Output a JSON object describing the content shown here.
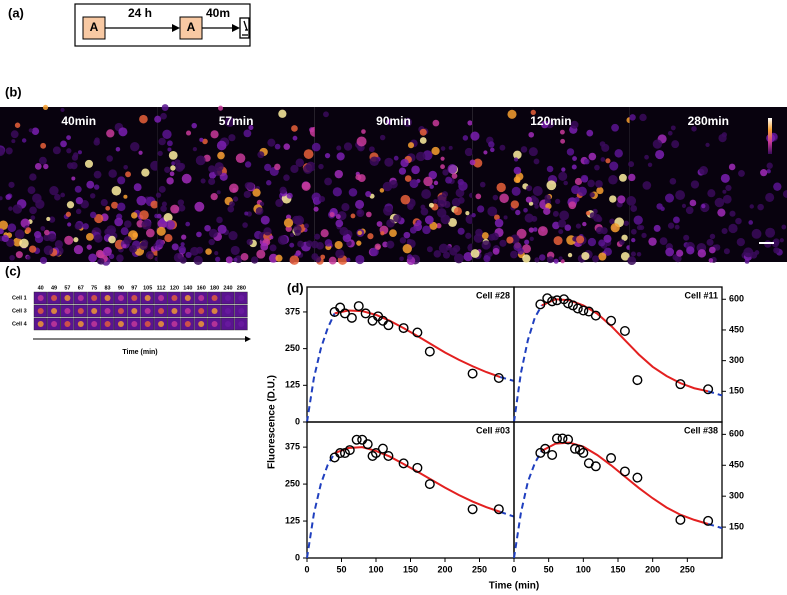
{
  "figure": {
    "a": {
      "label": "(a)",
      "box1": "A",
      "box2": "A",
      "step1": "24 h",
      "step2": "40m"
    },
    "b": {
      "label": "(b)",
      "frames": [
        "40min",
        "57min",
        "90min",
        "120min",
        "280min"
      ]
    },
    "c": {
      "label": "(c)",
      "times": [
        "40",
        "49",
        "57",
        "67",
        "75",
        "83",
        "90",
        "97",
        "105",
        "112",
        "120",
        "140",
        "160",
        "180",
        "240",
        "280"
      ],
      "rows": [
        "Cell 1",
        "Cell 3",
        "Cell 4"
      ],
      "axis": "Time (min)"
    },
    "d": {
      "label": "(d)",
      "ylabel": "Fluorescence (D.U.)",
      "xlabel": "Time (min)"
    }
  },
  "chart_data": [
    {
      "type": "scatter",
      "title": "Cell #28",
      "xlim": [
        0,
        300
      ],
      "ylim": [
        0,
        460
      ],
      "yticks": [
        0,
        125,
        250,
        375
      ],
      "x": [
        40,
        48,
        55,
        65,
        75,
        85,
        95,
        103,
        110,
        118,
        140,
        160,
        178,
        240,
        278
      ],
      "values": [
        375,
        390,
        370,
        355,
        395,
        370,
        345,
        360,
        345,
        330,
        320,
        305,
        240,
        165,
        150
      ],
      "series": [
        {
          "color": "#e32020",
          "x": [
            40,
            60,
            80,
            100,
            120,
            140,
            160,
            180,
            200,
            220,
            240,
            260,
            280
          ],
          "values": [
            370,
            380,
            378,
            365,
            345,
            320,
            293,
            265,
            237,
            212,
            190,
            170,
            153
          ]
        },
        {
          "color": "#1f3fbf",
          "dash": true,
          "x": [
            0,
            10,
            20,
            30,
            40
          ],
          "values": [
            0,
            150,
            250,
            320,
            370
          ]
        },
        {
          "color": "#1f3fbf",
          "dash": true,
          "x": [
            280,
            300
          ],
          "values": [
            153,
            140
          ]
        }
      ]
    },
    {
      "type": "scatter",
      "title": "Cell #11",
      "xlim": [
        0,
        300
      ],
      "ylim": [
        0,
        660
      ],
      "yticks": [
        150,
        300,
        450,
        600
      ],
      "x": [
        38,
        48,
        55,
        62,
        72,
        78,
        85,
        92,
        100,
        108,
        118,
        140,
        160,
        178,
        240,
        280
      ],
      "values": [
        575,
        605,
        590,
        595,
        600,
        580,
        570,
        555,
        545,
        540,
        520,
        495,
        445,
        205,
        185,
        160
      ],
      "series": [
        {
          "color": "#e32020",
          "x": [
            40,
            60,
            80,
            100,
            120,
            140,
            160,
            180,
            200,
            220,
            240,
            260,
            280
          ],
          "values": [
            570,
            600,
            595,
            570,
            530,
            470,
            400,
            330,
            270,
            225,
            190,
            165,
            150
          ]
        },
        {
          "color": "#1f3fbf",
          "dash": true,
          "x": [
            0,
            10,
            20,
            30,
            40
          ],
          "values": [
            0,
            240,
            400,
            510,
            570
          ]
        },
        {
          "color": "#1f3fbf",
          "dash": true,
          "x": [
            280,
            300
          ],
          "values": [
            150,
            130
          ]
        }
      ]
    },
    {
      "type": "scatter",
      "title": "Cell #03",
      "xlim": [
        0,
        300
      ],
      "ylim": [
        0,
        460
      ],
      "yticks": [
        0,
        125,
        250,
        375
      ],
      "x": [
        40,
        48,
        55,
        62,
        72,
        80,
        88,
        95,
        100,
        110,
        118,
        140,
        160,
        178,
        240,
        278
      ],
      "values": [
        340,
        355,
        355,
        365,
        400,
        400,
        385,
        345,
        355,
        370,
        345,
        320,
        305,
        250,
        165,
        165
      ],
      "series": [
        {
          "color": "#e32020",
          "x": [
            40,
            60,
            80,
            100,
            120,
            140,
            160,
            180,
            200,
            220,
            240,
            260,
            280
          ],
          "values": [
            355,
            372,
            375,
            362,
            343,
            318,
            292,
            265,
            238,
            213,
            191,
            172,
            156
          ]
        },
        {
          "color": "#1f3fbf",
          "dash": true,
          "x": [
            0,
            10,
            20,
            30,
            40
          ],
          "values": [
            0,
            150,
            250,
            315,
            355
          ]
        },
        {
          "color": "#1f3fbf",
          "dash": true,
          "x": [
            280,
            300
          ],
          "values": [
            156,
            140
          ]
        }
      ]
    },
    {
      "type": "scatter",
      "title": "Cell #38",
      "xlim": [
        0,
        300
      ],
      "ylim": [
        0,
        660
      ],
      "yticks": [
        150,
        300,
        450,
        600
      ],
      "x": [
        38,
        45,
        55,
        62,
        70,
        78,
        88,
        95,
        100,
        108,
        118,
        140,
        160,
        178,
        240,
        280
      ],
      "values": [
        510,
        530,
        500,
        580,
        580,
        575,
        530,
        525,
        510,
        460,
        445,
        485,
        420,
        390,
        185,
        180
      ],
      "series": [
        {
          "color": "#e32020",
          "x": [
            40,
            60,
            80,
            100,
            120,
            140,
            160,
            180,
            200,
            220,
            240,
            260,
            280
          ],
          "values": [
            520,
            555,
            560,
            540,
            500,
            450,
            395,
            340,
            290,
            245,
            210,
            185,
            165
          ]
        },
        {
          "color": "#1f3fbf",
          "dash": true,
          "x": [
            0,
            10,
            20,
            30,
            40
          ],
          "values": [
            0,
            220,
            370,
            460,
            520
          ]
        },
        {
          "color": "#1f3fbf",
          "dash": true,
          "x": [
            280,
            300
          ],
          "values": [
            165,
            145
          ]
        }
      ]
    }
  ]
}
